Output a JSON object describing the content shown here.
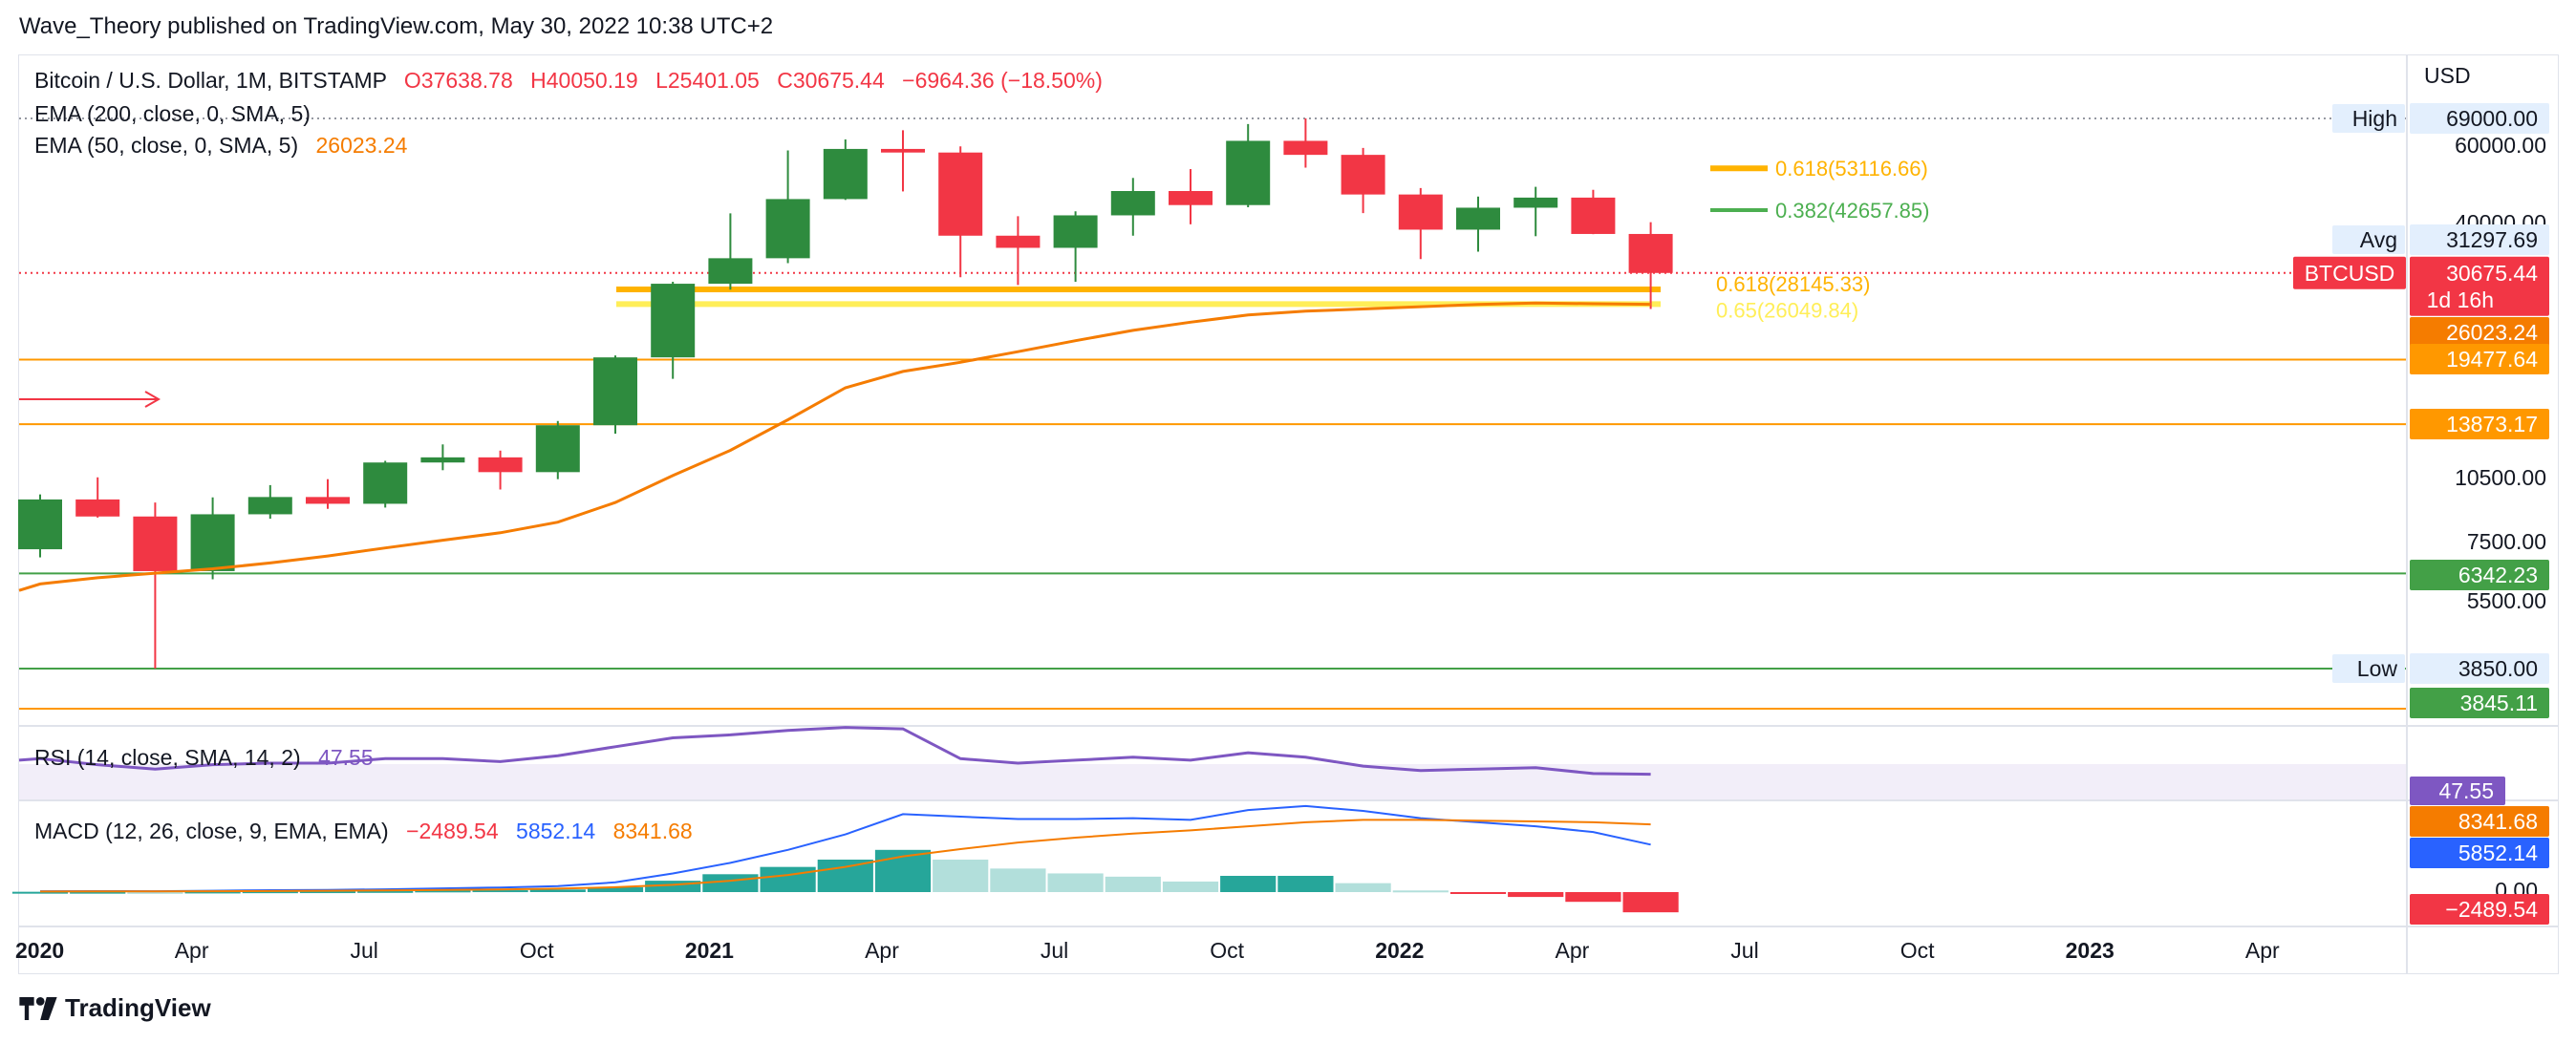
{
  "publisher": "Wave_Theory published on TradingView.com, May 30, 2022 10:38 UTC+2",
  "footer": {
    "brand": "TradingView"
  },
  "legend": {
    "symbol": "Bitcoin / U.S. Dollar, 1M, BITSTAMP",
    "open": "O37638.78",
    "high": "H40050.19",
    "low": "L25401.05",
    "close": "C30675.44",
    "change": "−6964.36 (−18.50%)",
    "ema200_label": "EMA (200, close, 0, SMA, 5)",
    "ema50_label": "EMA (50, close, 0, SMA, 5)",
    "ema50_value": "26023.24",
    "rsi_label": "RSI (14, close, SMA, 14, 2)",
    "rsi_value": "47.55",
    "macd_label": "MACD (12, 26, close, 9, EMA, EMA)",
    "macd_hist": "−2489.54",
    "macd_line": "5852.14",
    "macd_signal": "8341.68"
  },
  "colors": {
    "up": "#2e8b3e",
    "down": "#f23645",
    "ema": "#f57c00",
    "fib": "#ffeb3b",
    "green_level": "#43a047",
    "rsi": "#7e57c2",
    "macd": "#2962ff",
    "signal": "#f57c00",
    "hist_up": "#26a69a",
    "hist_up_light": "#b2dfdb",
    "hist_down": "#f23645",
    "hist_down_light": "#ffcdd2"
  },
  "chart_data": {
    "type": "candlestick",
    "symbol": "BTCUSD",
    "interval": "1M",
    "price_scale": "log",
    "currency": "USD",
    "months": [
      "2020-01",
      "2020-02",
      "2020-03",
      "2020-04",
      "2020-05",
      "2020-06",
      "2020-07",
      "2020-08",
      "2020-09",
      "2020-10",
      "2020-11",
      "2020-12",
      "2021-01",
      "2021-02",
      "2021-03",
      "2021-04",
      "2021-05",
      "2021-06",
      "2021-07",
      "2021-08",
      "2021-09",
      "2021-10",
      "2021-11",
      "2021-12",
      "2022-01",
      "2022-02",
      "2022-03",
      "2022-04",
      "2022-05"
    ],
    "ohlc": [
      [
        7200,
        9600,
        6900,
        9350
      ],
      [
        9350,
        10500,
        8500,
        8550
      ],
      [
        8550,
        9200,
        3850,
        6420
      ],
      [
        6420,
        9450,
        6150,
        8650
      ],
      [
        8650,
        10080,
        8450,
        9470
      ],
      [
        9470,
        10400,
        8900,
        9140
      ],
      [
        9140,
        11450,
        8960,
        11350
      ],
      [
        11350,
        12480,
        10900,
        11660
      ],
      [
        11660,
        12080,
        9850,
        10790
      ],
      [
        10790,
        14110,
        10400,
        13800
      ],
      [
        13800,
        19900,
        13200,
        19700
      ],
      [
        19700,
        29300,
        17600,
        28990
      ],
      [
        28990,
        41950,
        28100,
        33140
      ],
      [
        33140,
        58350,
        32300,
        45200
      ],
      [
        45200,
        61800,
        45000,
        58800
      ],
      [
        58800,
        64850,
        47050,
        57700
      ],
      [
        57700,
        59600,
        30000,
        37300
      ],
      [
        37300,
        41300,
        28800,
        35000
      ],
      [
        35000,
        42400,
        29300,
        41500
      ],
      [
        41500,
        50500,
        37300,
        47150
      ],
      [
        47150,
        52900,
        39600,
        43800
      ],
      [
        43800,
        67000,
        43300,
        61350
      ],
      [
        61350,
        69000,
        53300,
        57000
      ],
      [
        57000,
        59100,
        42000,
        46300
      ],
      [
        46300,
        47900,
        33000,
        38500
      ],
      [
        38500,
        45800,
        34300,
        43200
      ],
      [
        43200,
        48200,
        37200,
        45550
      ],
      [
        45550,
        47450,
        37600,
        37640
      ],
      [
        37638.78,
        40050.19,
        25401.05,
        30675.44
      ]
    ],
    "ema50": [
      6000,
      6200,
      6350,
      6500,
      6700,
      6950,
      7250,
      7550,
      7850,
      8300,
      9200,
      10600,
      12100,
      14200,
      16800,
      18300,
      19200,
      20300,
      21500,
      22700,
      23700,
      24600,
      25100,
      25400,
      25700,
      26000,
      26200,
      26100,
      26023.24
    ],
    "x_axis_ticks": [
      "2020",
      "Apr",
      "Jul",
      "Oct",
      "2021",
      "Apr",
      "Jul",
      "Oct",
      "2022",
      "Apr",
      "Jul",
      "Oct",
      "2023",
      "Apr"
    ],
    "y_axis_ticks": [
      "60000.00",
      "40000.00",
      "10500.00",
      "7500.00",
      "5500.00"
    ],
    "high": {
      "label": "High",
      "value": "69000.00"
    },
    "low": {
      "label": "Low",
      "value": "3850.00"
    },
    "avg": {
      "label": "Avg",
      "value": "31297.69"
    },
    "last_price": {
      "label": "BTCUSD",
      "value": "30675.44",
      "countdown": "1d 16h"
    },
    "price_tags": [
      {
        "value": "26023.24",
        "color": "#f57c00"
      },
      {
        "value": "19477.64",
        "color": "#ff9800"
      },
      {
        "value": "13873.17",
        "color": "#ff9800"
      },
      {
        "value": "6342.23",
        "color": "#43a047"
      },
      {
        "value": "3845.11",
        "color": "#43a047"
      }
    ],
    "horizontal_levels": [
      {
        "price": 19477.64,
        "color": "#ff9800"
      },
      {
        "price": 13873.17,
        "color": "#ff9800"
      },
      {
        "price": 6342.23,
        "color": "#43a047"
      },
      {
        "price": 3850,
        "color": "#43a047"
      },
      {
        "price": 3500,
        "color": "#ff9800"
      }
    ],
    "fib_levels": [
      {
        "label": "0.618(53116.66)",
        "price": 53116.66,
        "color": "#ffb300"
      },
      {
        "label": "0.382(42657.85)",
        "price": 42657.85,
        "color": "#4caf50"
      },
      {
        "label": "0.618(28145.33)",
        "price": 28145.33,
        "color": "#ffb300"
      },
      {
        "label": "0.65(26049.84)",
        "price": 26049.84,
        "color": "#ffee58"
      }
    ],
    "rsi": [
      58,
      54,
      51,
      54,
      55,
      55,
      58,
      58,
      56,
      60,
      66,
      72,
      74,
      77,
      79,
      78,
      58,
      55,
      57,
      59,
      57,
      62,
      59,
      53,
      50,
      51,
      52,
      48,
      47.55
    ],
    "rsi_value": "47.55",
    "macd_line": [
      110,
      120,
      100,
      170,
      230,
      270,
      340,
      460,
      560,
      740,
      1200,
      2300,
      3600,
      5200,
      7100,
      9600,
      9300,
      9000,
      9000,
      9100,
      8900,
      10100,
      10600,
      10000,
      9100,
      8600,
      8100,
      7400,
      5852.14
    ],
    "signal_line": [
      70,
      80,
      80,
      100,
      130,
      160,
      200,
      260,
      330,
      420,
      600,
      900,
      1400,
      2100,
      3100,
      4400,
      5300,
      6100,
      6700,
      7200,
      7600,
      8100,
      8600,
      8900,
      8900,
      8800,
      8700,
      8600,
      8341.68
    ],
    "macd_hist": [
      40,
      40,
      20,
      70,
      100,
      110,
      140,
      200,
      230,
      320,
      600,
      1400,
      2200,
      3100,
      4000,
      5200,
      4000,
      2900,
      2300,
      1900,
      1300,
      2000,
      2000,
      1100,
      200,
      -200,
      -600,
      -1200,
      -2489.54
    ],
    "macd_value_tags": [
      "8341.68",
      "5852.14",
      "0.00",
      "−2489.54"
    ],
    "rsi_tag": "47.55"
  }
}
